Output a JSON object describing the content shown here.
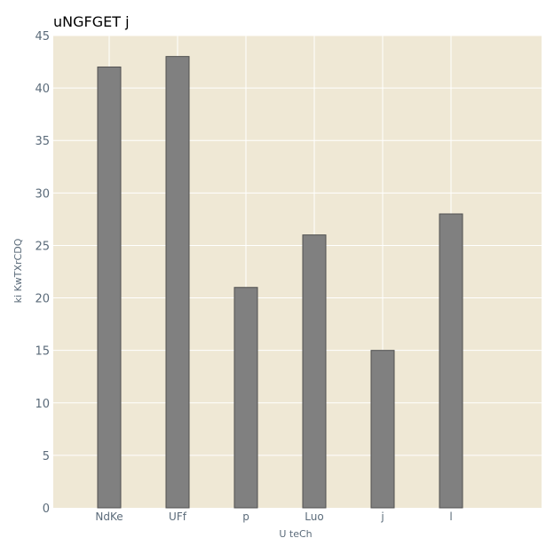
{
  "chart_data": {
    "type": "bar",
    "title": "uNGFGET j",
    "xlabel": "U teCh",
    "ylabel": "ki  KwTXrCDQ",
    "categories": [
      "NdKe",
      "UFf",
      "p",
      "Luo",
      "j",
      "l"
    ],
    "values": [
      42,
      43,
      21,
      26,
      15,
      28
    ],
    "ylim": [
      0,
      45
    ],
    "yticks": [
      0,
      5,
      10,
      15,
      20,
      25,
      30,
      35,
      40,
      45
    ],
    "grid": true,
    "colors": {
      "plot_background": "#efe8d5",
      "bar_fill": "#808080",
      "bar_edge": "#505050",
      "grid": "#ffffff"
    }
  }
}
